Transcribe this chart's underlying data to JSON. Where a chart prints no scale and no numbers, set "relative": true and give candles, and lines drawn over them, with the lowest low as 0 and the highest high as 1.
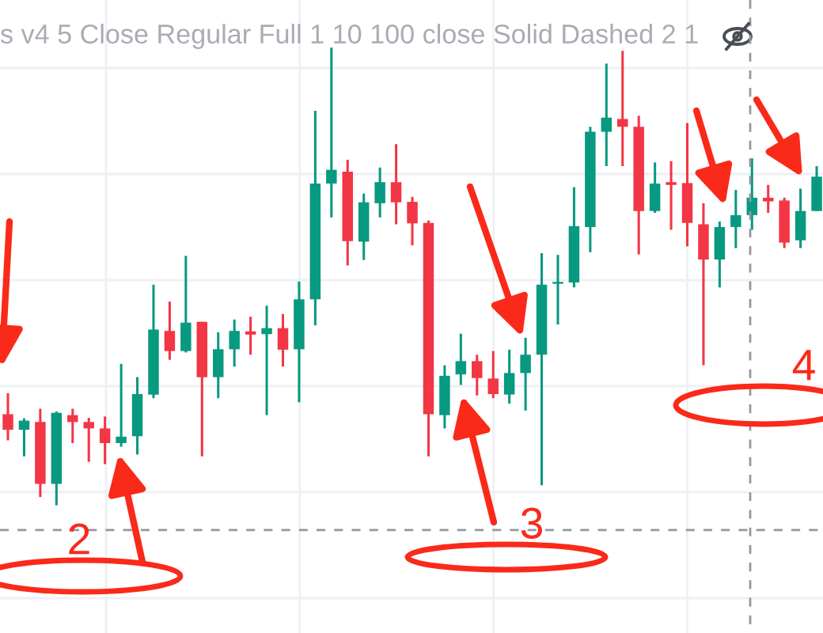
{
  "chart_data": {
    "type": "candlestick",
    "relative": true,
    "categories": [
      null,
      null,
      null,
      null,
      null,
      null,
      null,
      null,
      null,
      null,
      null,
      null,
      null,
      null,
      null,
      null,
      null,
      null,
      null,
      null,
      null,
      null,
      null,
      null,
      null,
      null,
      null,
      null,
      null,
      null,
      null,
      null,
      null,
      null,
      null,
      null,
      null,
      null,
      null,
      null,
      null,
      null,
      null,
      null,
      null,
      null,
      null,
      null,
      null,
      null,
      null
    ],
    "ohlc": [
      [
        0.199,
        0.245,
        0.142,
        0.165
      ],
      [
        0.165,
        0.19,
        0.107,
        0.185
      ],
      [
        0.182,
        0.211,
        0.018,
        0.047
      ],
      [
        0.047,
        0.205,
        0,
        0.202
      ],
      [
        0.197,
        0.211,
        0.136,
        0.182
      ],
      [
        0.182,
        0.191,
        0.095,
        0.168
      ],
      [
        0.168,
        0.194,
        0.09,
        0.136
      ],
      [
        0.136,
        0.309,
        0.128,
        0.15
      ],
      [
        0.151,
        0.28,
        0.111,
        0.243
      ],
      [
        0.242,
        0.482,
        0.234,
        0.384
      ],
      [
        0.381,
        0.445,
        0.318,
        0.337
      ],
      [
        0.337,
        0.545,
        0.334,
        0.399
      ],
      [
        0.401,
        0.401,
        0.107,
        0.28
      ],
      [
        0.28,
        0.378,
        0.234,
        0.341
      ],
      [
        0.341,
        0.406,
        0.303,
        0.381
      ],
      [
        0.38,
        0.412,
        0.329,
        0.373
      ],
      [
        0.374,
        0.436,
        0.197,
        0.387
      ],
      [
        0.387,
        0.418,
        0.303,
        0.34
      ],
      [
        0.341,
        0.489,
        0.225,
        0.45
      ],
      [
        0.45,
        0.862,
        0.393,
        0.703
      ],
      [
        0.703,
        1,
        0.629,
        0.733
      ],
      [
        0.729,
        0.755,
        0.524,
        0.577
      ],
      [
        0.576,
        0.681,
        0.536,
        0.662
      ],
      [
        0.66,
        0.738,
        0.629,
        0.706
      ],
      [
        0.706,
        0.789,
        0.614,
        0.662
      ],
      [
        0.663,
        0.674,
        0.568,
        0.616
      ],
      [
        0.617,
        0.622,
        0.107,
        0.199
      ],
      [
        0.197,
        0.306,
        0.168,
        0.283
      ],
      [
        0.286,
        0.375,
        0.263,
        0.315
      ],
      [
        0.315,
        0.329,
        0.24,
        0.278
      ],
      [
        0.277,
        0.337,
        0.234,
        0.243
      ],
      [
        0.242,
        0.34,
        0.222,
        0.289
      ],
      [
        0.289,
        0.366,
        0.207,
        0.329
      ],
      [
        0.329,
        0.551,
        0.044,
        0.482
      ],
      [
        0.484,
        0.547,
        0.395,
        0.488
      ],
      [
        0.487,
        0.695,
        0.476,
        0.61
      ],
      [
        0.608,
        0.827,
        0.553,
        0.816
      ],
      [
        0.816,
        0.965,
        0.741,
        0.847
      ],
      [
        0.844,
        0.993,
        0.741,
        0.827
      ],
      [
        0.827,
        0.851,
        0.548,
        0.643
      ],
      [
        0.643,
        0.749,
        0.639,
        0.703
      ],
      [
        0.706,
        0.752,
        0.602,
        0.7
      ],
      [
        0.704,
        0.835,
        0.566,
        0.617
      ],
      [
        0.614,
        0.66,
        0.306,
        0.537
      ],
      [
        0.537,
        0.62,
        0.476,
        0.608
      ],
      [
        0.608,
        0.689,
        0.562,
        0.634
      ],
      [
        0.634,
        0.758,
        0.602,
        0.672
      ],
      [
        0.672,
        0.7,
        0.639,
        0.664
      ],
      [
        0.666,
        0.672,
        0.562,
        0.574
      ],
      [
        0.579,
        0.692,
        0.562,
        0.643
      ],
      [
        0.643,
        0.741,
        0.643,
        0.718
      ]
    ],
    "colors": [
      "#f23645",
      "#089981",
      "#f23645",
      "#089981",
      "#f23645",
      "#f23645",
      "#f23645",
      "#089981",
      "#089981",
      "#089981",
      "#f23645",
      "#089981",
      "#f23645",
      "#089981",
      "#089981",
      "#f23645",
      "#089981",
      "#f23645",
      "#089981",
      "#089981",
      "#089981",
      "#f23645",
      "#089981",
      "#089981",
      "#f23645",
      "#f23645",
      "#f23645",
      "#089981",
      "#089981",
      "#f23645",
      "#f23645",
      "#089981",
      "#089981",
      "#089981",
      "#089981",
      "#089981",
      "#089981",
      "#089981",
      "#f23645",
      "#f23645",
      "#089981",
      "#f23645",
      "#f23645",
      "#f23645",
      "#089981",
      "#089981",
      "#089981",
      "#f23645",
      "#f23645",
      "#089981",
      "#089981"
    ],
    "grid": true,
    "ref_lines": [
      {
        "axis": "y",
        "value": -0.054,
        "color": "#9598a1",
        "line_style": "dashed"
      }
    ],
    "annotations": [
      "s v4 5 Close Regular Full 1 10 100 close Solid Dashed 2 1",
      "2",
      "3",
      "4"
    ]
  }
}
